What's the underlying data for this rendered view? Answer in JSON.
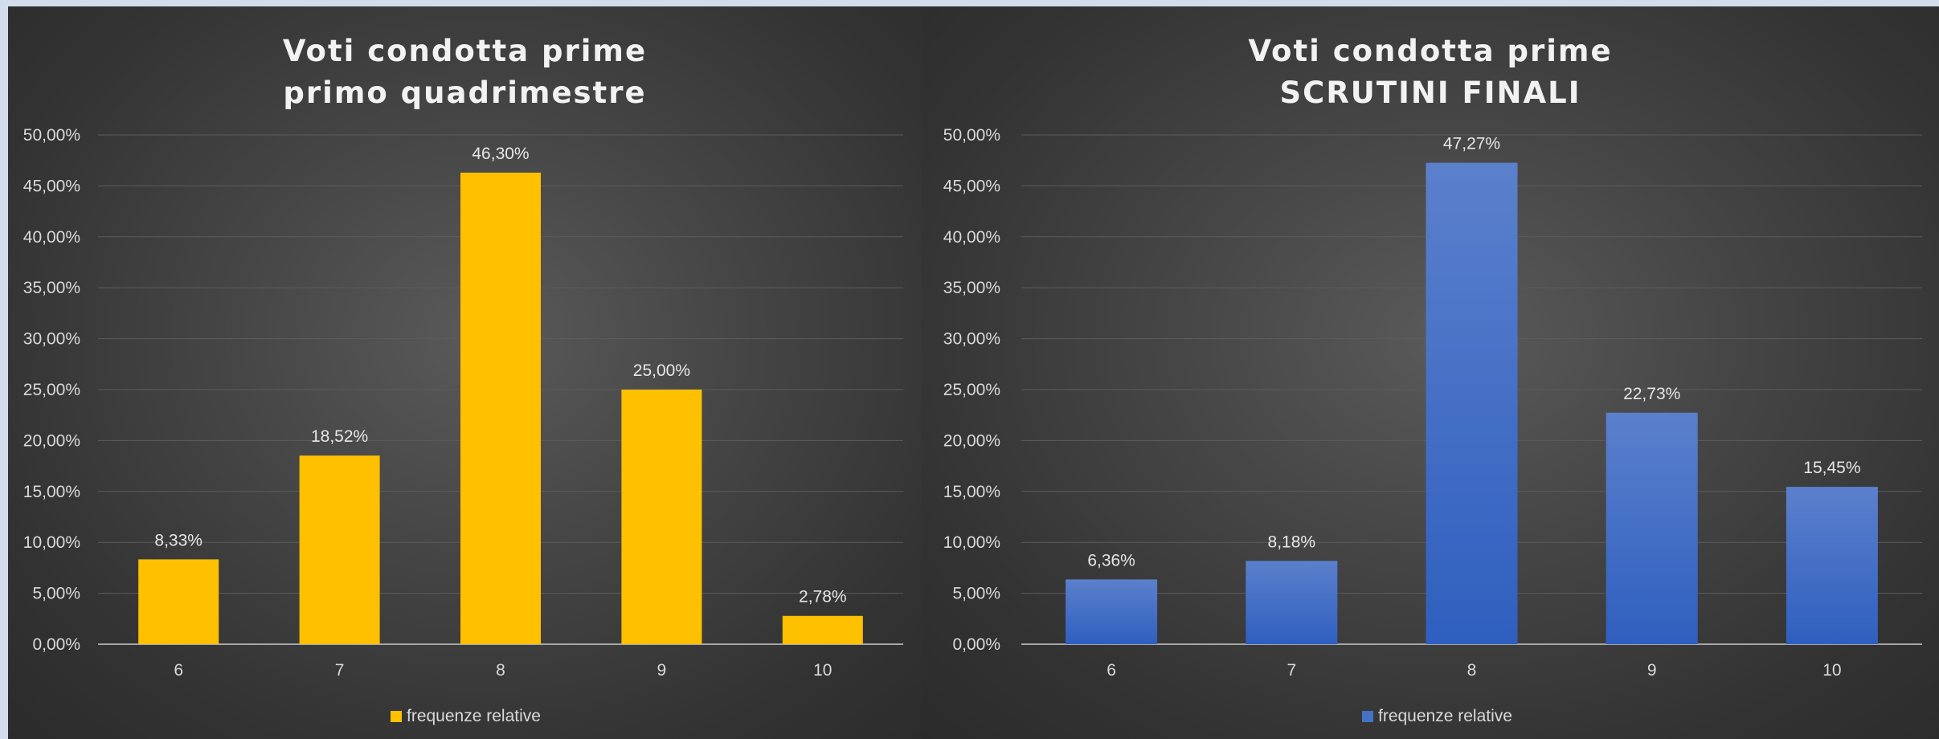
{
  "chart_data": [
    {
      "type": "bar",
      "title_lines": [
        "Voti condotta prime",
        "primo quadrimestre"
      ],
      "categories": [
        "6",
        "7",
        "8",
        "9",
        "10"
      ],
      "series": [
        {
          "name": "frequenze relative",
          "values": [
            8.33,
            18.52,
            46.3,
            25.0,
            2.78
          ],
          "labels": [
            "8,33%",
            "18,52%",
            "46,30%",
            "25,00%",
            "2,78%"
          ]
        }
      ],
      "yticks": [
        "0,00%",
        "5,00%",
        "10,00%",
        "15,00%",
        "20,00%",
        "25,00%",
        "30,00%",
        "35,00%",
        "40,00%",
        "45,00%",
        "50,00%"
      ],
      "ylim": [
        0,
        50
      ],
      "grid": true,
      "legend": "bottom",
      "color": "#ffc000"
    },
    {
      "type": "bar",
      "title_lines": [
        "Voti condotta prime",
        "SCRUTINI FINALI"
      ],
      "categories": [
        "6",
        "7",
        "8",
        "9",
        "10"
      ],
      "series": [
        {
          "name": "frequenze relative",
          "values": [
            6.36,
            8.18,
            47.27,
            22.73,
            15.45
          ],
          "labels": [
            "6,36%",
            "8,18%",
            "47,27%",
            "22,73%",
            "15,45%"
          ]
        }
      ],
      "yticks": [
        "0,00%",
        "5,00%",
        "10,00%",
        "15,00%",
        "20,00%",
        "25,00%",
        "30,00%",
        "35,00%",
        "40,00%",
        "45,00%",
        "50,00%"
      ],
      "ylim": [
        0,
        50
      ],
      "grid": true,
      "legend": "bottom",
      "color": "#4472c4"
    }
  ]
}
